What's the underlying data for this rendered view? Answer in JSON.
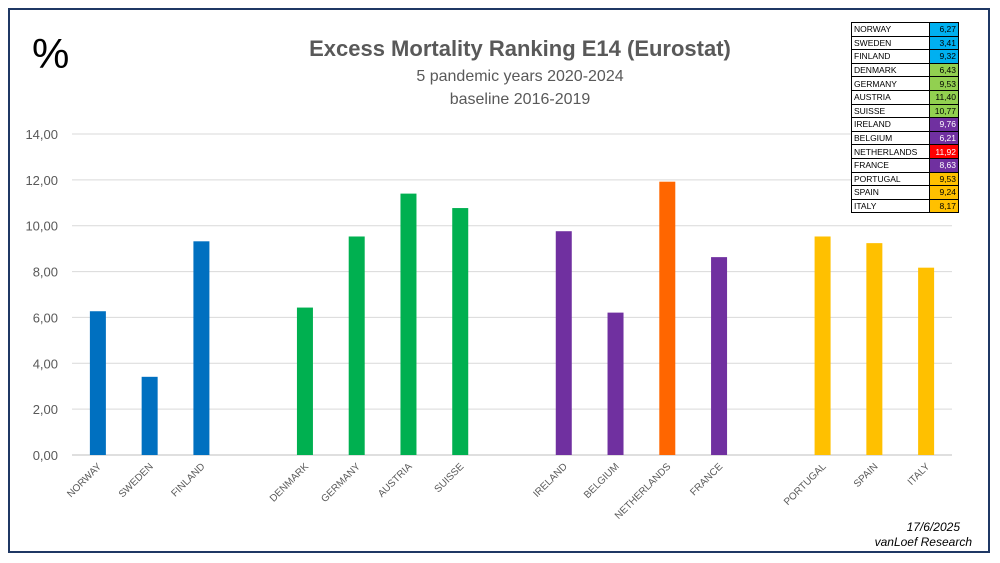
{
  "header": {
    "percent_symbol": "%",
    "title": "Excess Mortality Ranking E14 (Eurostat)",
    "subtitle": "5 pandemic years 2020-2024",
    "subtitle2": "baseline 2016-2019"
  },
  "footer": {
    "date": "17/6/2025",
    "author": "vanLoef Research"
  },
  "colors": {
    "blue": "#0070c0",
    "green": "#00b050",
    "purple": "#7030a0",
    "orange": "#ff6600",
    "yellow": "#ffc000",
    "legend_blue": "#00b0f0",
    "legend_green": "#92d050",
    "legend_red": "#ff0000"
  },
  "chart_data": {
    "type": "bar",
    "title": "Excess Mortality Ranking E14 (Eurostat)",
    "ylabel": "%",
    "ylim": [
      0,
      14
    ],
    "yticks": [
      "0,00",
      "2,00",
      "4,00",
      "6,00",
      "8,00",
      "10,00",
      "12,00",
      "14,00"
    ],
    "grid": true,
    "categories": [
      "NORWAY",
      "SWEDEN",
      "FINLAND",
      "DENMARK",
      "GERMANY",
      "AUSTRIA",
      "SUISSE",
      "IRELAND",
      "BELGIUM",
      "NETHERLANDS",
      "FRANCE",
      "PORTUGAL",
      "SPAIN",
      "ITALY"
    ],
    "values": [
      6.27,
      3.41,
      9.32,
      6.43,
      9.53,
      11.4,
      10.77,
      9.76,
      6.21,
      11.92,
      8.63,
      9.53,
      9.24,
      8.17
    ],
    "bar_colors": [
      "#0070c0",
      "#0070c0",
      "#0070c0",
      "#00b050",
      "#00b050",
      "#00b050",
      "#00b050",
      "#7030a0",
      "#7030a0",
      "#ff6600",
      "#7030a0",
      "#ffc000",
      "#ffc000",
      "#ffc000"
    ],
    "legend_table": {
      "placement": "top-right",
      "rows": [
        {
          "name": "NORWAY",
          "value": "6,27",
          "color": "#00b0f0",
          "text_color": "#000000"
        },
        {
          "name": "SWEDEN",
          "value": "3,41",
          "color": "#00b0f0",
          "text_color": "#000000"
        },
        {
          "name": "FINLAND",
          "value": "9,32",
          "color": "#00b0f0",
          "text_color": "#000000"
        },
        {
          "name": "DENMARK",
          "value": "6,43",
          "color": "#92d050",
          "text_color": "#000000"
        },
        {
          "name": "GERMANY",
          "value": "9,53",
          "color": "#92d050",
          "text_color": "#000000"
        },
        {
          "name": "AUSTRIA",
          "value": "11,40",
          "color": "#92d050",
          "text_color": "#000000"
        },
        {
          "name": "SUISSE",
          "value": "10,77",
          "color": "#92d050",
          "text_color": "#000000"
        },
        {
          "name": "IRELAND",
          "value": "9,76",
          "color": "#7030a0",
          "text_color": "#ffffff"
        },
        {
          "name": "BELGIUM",
          "value": "6,21",
          "color": "#7030a0",
          "text_color": "#ffffff"
        },
        {
          "name": "NETHERLANDS",
          "value": "11,92",
          "color": "#ff0000",
          "text_color": "#ffffff"
        },
        {
          "name": "FRANCE",
          "value": "8,63",
          "color": "#7030a0",
          "text_color": "#ffffff"
        },
        {
          "name": "PORTUGAL",
          "value": "9,53",
          "color": "#ffc000",
          "text_color": "#000000"
        },
        {
          "name": "SPAIN",
          "value": "9,24",
          "color": "#ffc000",
          "text_color": "#000000"
        },
        {
          "name": "ITALY",
          "value": "8,17",
          "color": "#ffc000",
          "text_color": "#000000"
        }
      ]
    }
  }
}
